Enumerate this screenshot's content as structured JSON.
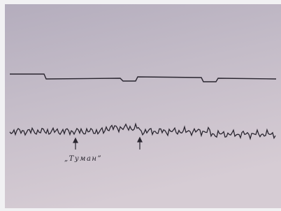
{
  "figure": {
    "label": "„Туман”"
  }
}
